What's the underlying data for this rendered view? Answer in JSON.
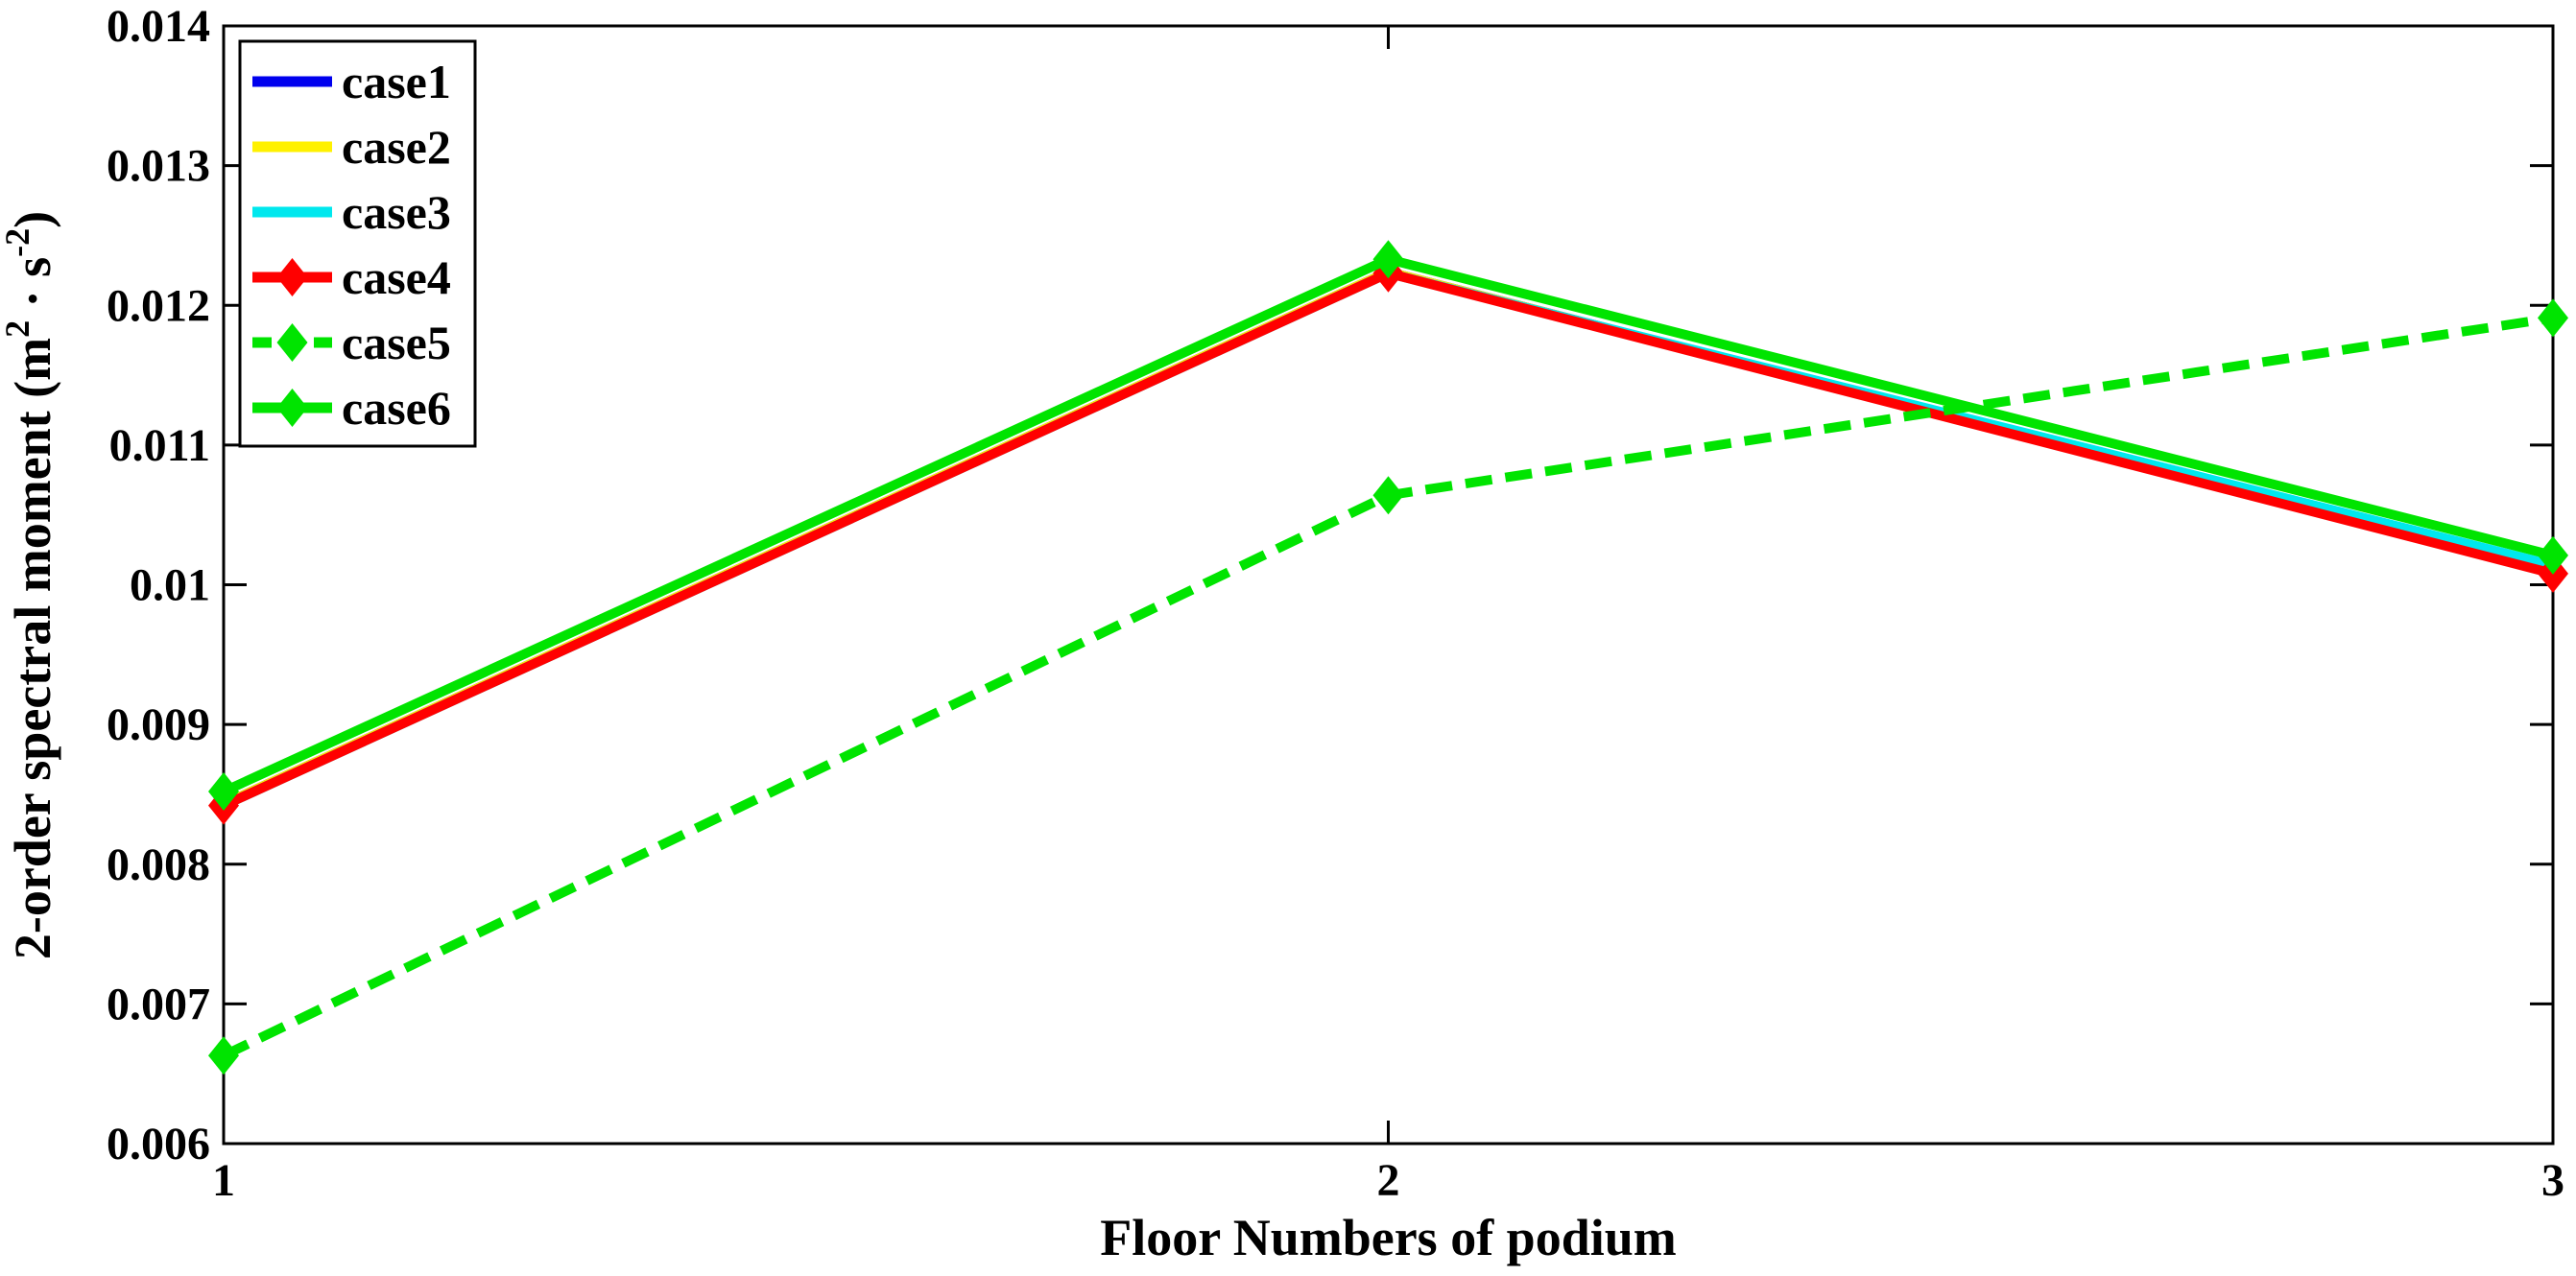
{
  "chart_data": {
    "type": "line",
    "title": "",
    "xlabel": "Floor Numbers of podium",
    "ylabel": "2-order spectral moment (m² · s⁻²)",
    "ylabel_parts": [
      {
        "text": "2-order spectral moment  (m",
        "super": false
      },
      {
        "text": "2",
        "super": true
      },
      {
        "text": " · s",
        "super": false
      },
      {
        "text": "-2",
        "super": true
      },
      {
        "text": ")",
        "super": false
      }
    ],
    "x": [
      1,
      2,
      3
    ],
    "xtick_labels": [
      "1",
      "2",
      "3"
    ],
    "yticks": [
      0.006,
      0.007,
      0.008,
      0.009,
      0.01,
      0.011,
      0.012,
      0.013,
      0.014
    ],
    "ytick_labels": [
      "0.006",
      "0.007",
      "0.008",
      "0.009",
      "0.01",
      "0.011",
      "0.012",
      "0.013",
      "0.014"
    ],
    "xlim": [
      1,
      3
    ],
    "ylim": [
      0.006,
      0.014
    ],
    "grid": false,
    "legend_position": "top-left",
    "series": [
      {
        "name": "case1",
        "color": "#0000EE",
        "style": "solid",
        "marker": "none",
        "values": [
          0.00843,
          0.01224,
          0.01009
        ]
      },
      {
        "name": "case2",
        "color": "#FFF100",
        "style": "solid",
        "marker": "none",
        "values": [
          0.00843,
          0.01224,
          0.01009
        ]
      },
      {
        "name": "case3",
        "color": "#00E8EE",
        "style": "solid",
        "marker": "none",
        "values": [
          0.00842,
          0.01223,
          0.01014
        ]
      },
      {
        "name": "case4",
        "color": "#FF0000",
        "style": "solid",
        "marker": "diamond",
        "values": [
          0.00842,
          0.01223,
          0.01008
        ]
      },
      {
        "name": "case5",
        "color": "#00E400",
        "style": "dashed",
        "marker": "diamond",
        "values": [
          0.00663,
          0.01064,
          0.01191
        ]
      },
      {
        "name": "case6",
        "color": "#00E400",
        "style": "solid",
        "marker": "diamond",
        "values": [
          0.00852,
          0.01233,
          0.01021
        ]
      }
    ],
    "axis_color": "#000000"
  }
}
